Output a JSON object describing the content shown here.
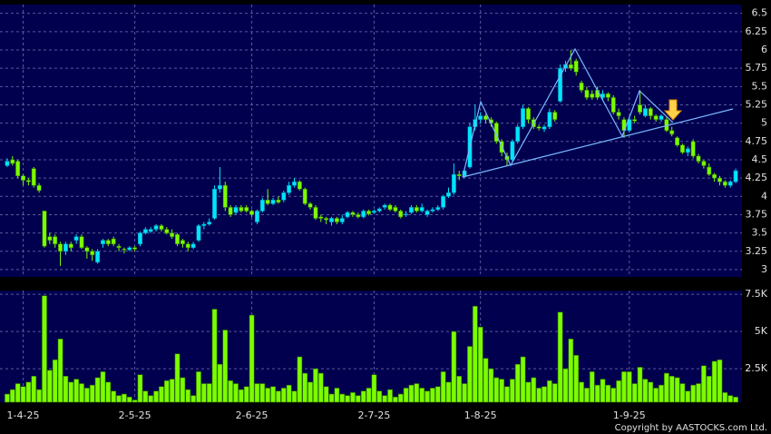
{
  "chart_data": [
    {
      "type": "candlestick",
      "up_color": "#00e5ff",
      "down_color": "#7cfc00",
      "ylim": [
        2.9,
        6.62
      ],
      "yticks": [
        3,
        3.25,
        3.5,
        3.75,
        4,
        4.25,
        4.5,
        4.75,
        5,
        5.25,
        5.5,
        5.75,
        6,
        6.25,
        6.5
      ],
      "grid": true,
      "open": [
        4.42,
        4.5,
        4.48,
        4.28,
        4.22,
        4.38,
        4.15,
        3.8,
        3.45,
        3.45,
        3.35,
        3.25,
        3.35,
        3.4,
        3.45,
        3.3,
        3.25,
        3.1,
        3.35,
        3.4,
        3.42,
        3.32,
        3.28,
        3.27,
        3.3,
        3.35,
        3.5,
        3.52,
        3.55,
        3.6,
        3.55,
        3.5,
        3.48,
        3.4,
        3.35,
        3.3,
        3.4,
        3.6,
        3.62,
        3.7,
        4.1,
        4.15,
        3.85,
        3.78,
        3.85,
        3.85,
        3.8,
        3.65,
        3.8,
        3.95,
        3.9,
        3.95,
        3.95,
        4.05,
        4.15,
        4.2,
        4.1,
        3.9,
        3.85,
        3.72,
        3.7,
        3.65,
        3.7,
        3.65,
        3.72,
        3.78,
        3.75,
        3.72,
        3.8,
        3.78,
        3.8,
        3.85,
        3.88,
        3.85,
        3.8,
        3.75,
        3.78,
        3.85,
        3.8,
        3.75,
        3.8,
        3.82,
        3.85,
        4.0,
        4.05,
        4.3,
        4.28,
        4.4,
        4.95,
        5.05,
        5.1,
        5.05,
        5.0,
        4.75,
        4.55,
        4.5,
        4.75,
        4.95,
        5.2,
        5.05,
        4.95,
        4.92,
        4.95,
        5.15,
        5.3,
        5.75,
        5.8,
        5.85,
        5.55,
        5.45,
        5.4,
        5.45,
        5.35,
        5.4,
        5.35,
        5.15,
        5.05,
        4.9,
        5.05,
        5.25,
        5.1,
        5.2,
        5.1,
        5.05,
        5.05,
        4.9,
        4.8,
        4.7,
        4.6,
        4.75,
        4.55,
        4.48,
        4.4,
        4.3,
        4.25,
        4.2,
        4.15,
        4.2
      ],
      "close": [
        4.48,
        4.45,
        4.28,
        4.22,
        4.2,
        4.15,
        4.08,
        3.32,
        3.4,
        3.35,
        3.25,
        3.35,
        3.3,
        3.45,
        3.3,
        3.25,
        3.2,
        3.25,
        3.4,
        3.35,
        3.35,
        3.3,
        3.27,
        3.3,
        3.28,
        3.5,
        3.55,
        3.55,
        3.6,
        3.55,
        3.5,
        3.45,
        3.35,
        3.35,
        3.3,
        3.35,
        3.6,
        3.62,
        3.65,
        4.1,
        4.15,
        3.85,
        3.75,
        3.85,
        3.8,
        3.8,
        3.75,
        3.8,
        3.95,
        3.9,
        3.95,
        3.92,
        4.05,
        4.15,
        4.2,
        4.1,
        3.9,
        3.85,
        3.7,
        3.7,
        3.68,
        3.7,
        3.65,
        3.7,
        3.78,
        3.75,
        3.72,
        3.8,
        3.76,
        3.8,
        3.83,
        3.88,
        3.82,
        3.8,
        3.72,
        3.76,
        3.85,
        3.8,
        3.85,
        3.8,
        3.82,
        3.85,
        4.0,
        4.05,
        4.3,
        4.28,
        4.35,
        4.95,
        5.05,
        5.1,
        5.05,
        5.0,
        4.75,
        4.6,
        4.5,
        4.75,
        4.95,
        5.2,
        5.05,
        4.95,
        4.93,
        4.95,
        5.15,
        5.05,
        5.75,
        5.8,
        5.75,
        5.7,
        5.45,
        5.35,
        5.35,
        5.35,
        5.4,
        5.35,
        5.15,
        5.1,
        4.9,
        5.05,
        5.03,
        5.15,
        5.2,
        5.1,
        5.05,
        5.1,
        4.9,
        4.85,
        4.7,
        4.6,
        4.65,
        4.55,
        4.48,
        4.42,
        4.3,
        4.25,
        4.2,
        4.15,
        4.2,
        4.35
      ],
      "high": [
        4.52,
        4.55,
        4.5,
        4.3,
        4.25,
        4.4,
        4.18,
        3.8,
        3.5,
        3.48,
        3.38,
        3.38,
        3.38,
        3.48,
        3.48,
        3.32,
        3.28,
        3.28,
        3.42,
        3.42,
        3.45,
        3.35,
        3.3,
        3.32,
        3.32,
        3.52,
        3.58,
        3.58,
        3.62,
        3.62,
        3.58,
        3.55,
        3.5,
        3.42,
        3.38,
        3.38,
        3.62,
        3.65,
        3.7,
        4.15,
        4.4,
        4.2,
        3.88,
        3.88,
        3.88,
        3.88,
        3.82,
        3.82,
        3.98,
        4.1,
        3.98,
        4.0,
        4.08,
        4.2,
        4.25,
        4.22,
        4.12,
        3.92,
        3.88,
        3.75,
        3.72,
        3.72,
        3.72,
        3.75,
        3.8,
        3.8,
        3.78,
        3.82,
        3.82,
        3.82,
        3.85,
        3.9,
        3.9,
        3.88,
        3.82,
        3.8,
        3.88,
        3.88,
        3.9,
        3.82,
        3.85,
        3.88,
        4.02,
        4.12,
        4.45,
        4.35,
        4.38,
        5.0,
        5.25,
        5.15,
        5.12,
        5.08,
        5.02,
        4.78,
        4.6,
        4.78,
        4.98,
        5.25,
        5.22,
        5.08,
        4.98,
        4.98,
        5.2,
        5.18,
        5.8,
        5.85,
        6.0,
        5.88,
        5.58,
        5.5,
        5.45,
        5.5,
        5.45,
        5.42,
        5.38,
        5.2,
        5.08,
        5.08,
        5.1,
        5.45,
        5.25,
        5.22,
        5.12,
        5.12,
        5.08,
        4.95,
        4.82,
        4.72,
        4.68,
        4.78,
        4.58,
        4.5,
        4.45,
        4.32,
        4.28,
        4.22,
        4.22,
        4.38
      ],
      "low": [
        4.4,
        4.42,
        4.25,
        4.15,
        4.15,
        4.12,
        4.05,
        3.3,
        3.35,
        3.3,
        3.05,
        3.2,
        3.25,
        3.35,
        3.28,
        3.15,
        3.12,
        3.08,
        3.3,
        3.32,
        3.32,
        3.25,
        3.22,
        3.25,
        3.25,
        3.32,
        3.48,
        3.5,
        3.52,
        3.52,
        3.48,
        3.42,
        3.32,
        3.3,
        3.25,
        3.28,
        3.38,
        3.55,
        3.6,
        3.68,
        4.05,
        3.8,
        3.72,
        3.75,
        3.78,
        3.78,
        3.72,
        3.62,
        3.78,
        3.88,
        3.88,
        3.9,
        3.92,
        4.02,
        4.12,
        4.08,
        3.88,
        3.82,
        3.68,
        3.65,
        3.62,
        3.6,
        3.62,
        3.62,
        3.7,
        3.72,
        3.7,
        3.7,
        3.74,
        3.76,
        3.78,
        3.82,
        3.8,
        3.78,
        3.7,
        3.72,
        3.76,
        3.78,
        3.78,
        3.72,
        3.78,
        3.8,
        3.82,
        3.98,
        4.02,
        4.22,
        4.25,
        4.38,
        4.9,
        5.0,
        5.0,
        4.95,
        4.72,
        4.55,
        4.42,
        4.48,
        4.72,
        4.92,
        5.0,
        4.92,
        4.9,
        4.88,
        4.92,
        5.02,
        5.28,
        5.7,
        5.72,
        5.65,
        5.42,
        5.32,
        5.32,
        5.32,
        5.32,
        5.3,
        5.12,
        5.05,
        4.8,
        4.88,
        5.0,
        5.12,
        5.08,
        5.05,
        5.02,
        5.02,
        4.88,
        4.82,
        4.68,
        4.58,
        4.55,
        4.52,
        4.45,
        4.38,
        4.28,
        4.2,
        4.15,
        4.12,
        4.12,
        4.18
      ]
    },
    {
      "type": "bar",
      "color": "#7cfc00",
      "ylim": [
        250,
        7750
      ],
      "yticks": [
        {
          "value": 2500,
          "label": "2.5K"
        },
        {
          "value": 5000,
          "label": "5K"
        },
        {
          "value": 7500,
          "label": "7.5K"
        }
      ],
      "xticks": [
        {
          "value": 3,
          "label": "1-4-25"
        },
        {
          "value": 24,
          "label": "2-5-25"
        },
        {
          "value": 46,
          "label": "2-6-25"
        },
        {
          "value": 69,
          "label": "2-7-25"
        },
        {
          "value": 89,
          "label": "1-8-25"
        },
        {
          "value": 117,
          "label": "1-9-25"
        }
      ],
      "grid": true,
      "values": [
        800,
        1100,
        1500,
        1300,
        1600,
        2000,
        1100,
        7400,
        2400,
        3100,
        4500,
        2000,
        1600,
        1800,
        1500,
        1200,
        1400,
        1900,
        2300,
        1600,
        1000,
        700,
        800,
        600,
        400,
        2100,
        1000,
        700,
        1000,
        1300,
        1700,
        1800,
        3500,
        1900,
        1100,
        700,
        2300,
        1500,
        1500,
        6500,
        2800,
        5100,
        1700,
        1500,
        1100,
        1300,
        6100,
        1500,
        1500,
        1200,
        1300,
        1000,
        1200,
        1400,
        1000,
        3300,
        2200,
        1600,
        2500,
        2200,
        1300,
        800,
        1200,
        800,
        700,
        900,
        700,
        1000,
        1200,
        2100,
        1000,
        700,
        1100,
        600,
        800,
        1200,
        1400,
        1500,
        1200,
        1000,
        1200,
        1300,
        2300,
        1600,
        5000,
        2000,
        1500,
        4000,
        6700,
        5300,
        3200,
        2500,
        1900,
        1800,
        1300,
        1800,
        2800,
        3300,
        1600,
        1900,
        1200,
        1300,
        1700,
        1500,
        6300,
        2500,
        4500,
        3400,
        1600,
        1200,
        2300,
        1400,
        1800,
        1400,
        1200,
        1700,
        2300,
        2300,
        1500,
        2600,
        1800,
        1600,
        1200,
        1400,
        2200,
        2000,
        1900,
        1500,
        1000,
        1400,
        1500,
        2700,
        2000,
        3000,
        3100,
        900,
        700,
        600
      ]
    }
  ],
  "copyright": "Copyright by AASTOCKS.com Ltd."
}
